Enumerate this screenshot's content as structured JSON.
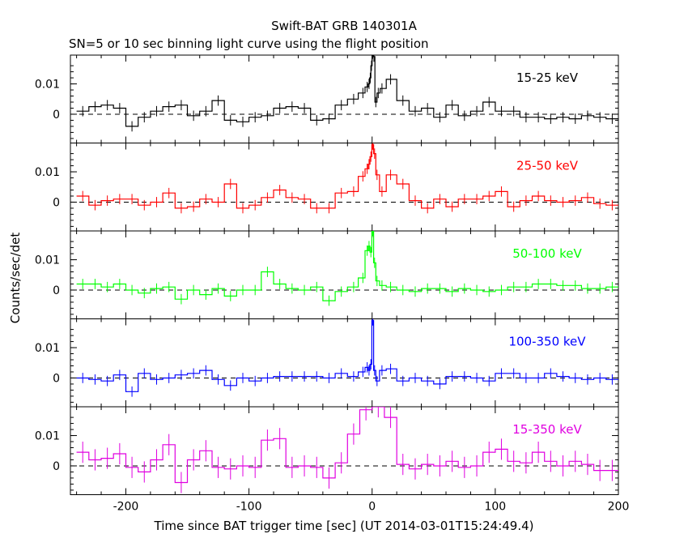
{
  "title": "Swift-BAT GRB 140301A",
  "subtitle": "SN=5 or 10 sec binning light curve using the flight position",
  "xlabel": "Time since BAT trigger time [sec] (UT 2014-03-01T15:24:49.4)",
  "ylabel": "Counts/sec/det",
  "chart_data": {
    "type": "line",
    "title": "Swift-BAT GRB 140301A",
    "subtitle": "SN=5 or 10 sec binning light curve using the flight position",
    "xlabel": "Time since BAT trigger time [sec] (UT 2014-03-01T15:24:49.4)",
    "ylabel": "Counts/sec/det",
    "xlim": [
      -245,
      200
    ],
    "ylim": [
      -0.0095,
      0.0195
    ],
    "x_ticks": [
      -200,
      -100,
      0,
      100,
      200
    ],
    "y_ticks": [
      0,
      0.01
    ],
    "y_tick_labels": [
      "0",
      "0.01"
    ],
    "zero_line": "dashed",
    "series": [
      {
        "name": "15-25 keV",
        "color": "#000000",
        "err": 0.0017,
        "x": [
          -235,
          -225,
          -215,
          -205,
          -195,
          -185,
          -175,
          -165,
          -155,
          -145,
          -135,
          -125,
          -115,
          -105,
          -95,
          -85,
          -75,
          -65,
          -55,
          -45,
          -35,
          -25,
          -15,
          -7.5,
          -4,
          -2.5,
          -1.5,
          -0.5,
          0.5,
          1.5,
          3,
          5,
          8,
          15,
          25,
          35,
          45,
          55,
          65,
          75,
          85,
          95,
          105,
          115,
          125,
          135,
          145,
          155,
          165,
          175,
          185,
          195
        ],
        "y": [
          0.001,
          0.0025,
          0.003,
          0.002,
          -0.004,
          -0.001,
          0.001,
          0.0025,
          0.003,
          -0.0005,
          0.001,
          0.0045,
          -0.002,
          -0.0025,
          -0.001,
          -0.0005,
          0.002,
          0.0025,
          0.002,
          -0.002,
          -0.0015,
          0.003,
          0.005,
          0.007,
          0.009,
          0.01,
          0.012,
          0.016,
          0.02,
          0.019,
          0.004,
          0.007,
          0.0085,
          0.0115,
          0.0045,
          0.001,
          0.002,
          -0.001,
          0.003,
          -0.0005,
          0.001,
          0.004,
          0.001,
          0.001,
          -0.001,
          -0.001,
          -0.0015,
          -0.001,
          -0.0015,
          -0.0005,
          -0.001,
          -0.0015
        ]
      },
      {
        "name": "25-50 keV",
        "color": "#ff0000",
        "err": 0.0017,
        "x": [
          -235,
          -225,
          -215,
          -205,
          -195,
          -185,
          -175,
          -165,
          -155,
          -145,
          -135,
          -125,
          -115,
          -105,
          -95,
          -85,
          -75,
          -65,
          -55,
          -45,
          -35,
          -25,
          -15,
          -7.5,
          -4,
          -2.5,
          -1,
          0.5,
          2,
          4,
          8,
          15,
          25,
          35,
          45,
          55,
          65,
          75,
          85,
          95,
          105,
          115,
          125,
          135,
          145,
          155,
          165,
          175,
          185,
          195
        ],
        "y": [
          0.002,
          -0.001,
          0.0005,
          0.001,
          0.001,
          -0.001,
          0,
          0.003,
          -0.002,
          -0.0015,
          0.001,
          0,
          0.006,
          -0.002,
          -0.001,
          0.0015,
          0.004,
          0.0015,
          0.001,
          -0.002,
          -0.002,
          0.003,
          0.0035,
          0.0085,
          0.011,
          0.0125,
          0.015,
          0.019,
          0.016,
          0.009,
          0.0035,
          0.009,
          0.006,
          0.0005,
          -0.002,
          0.001,
          -0.0015,
          0.001,
          0.001,
          0.002,
          0.0035,
          -0.0015,
          0.0005,
          0.002,
          0.0005,
          0,
          0.0005,
          0.0015,
          -0.0005,
          -0.001
        ]
      },
      {
        "name": "50-100 keV",
        "color": "#00ff00",
        "err": 0.0017,
        "x": [
          -235,
          -225,
          -215,
          -205,
          -195,
          -185,
          -175,
          -165,
          -155,
          -145,
          -135,
          -125,
          -115,
          -105,
          -95,
          -85,
          -75,
          -65,
          -55,
          -45,
          -35,
          -25,
          -15,
          -7.5,
          -4,
          -2.5,
          -1,
          0.5,
          2,
          4,
          8,
          15,
          25,
          35,
          45,
          55,
          65,
          75,
          85,
          95,
          105,
          115,
          125,
          135,
          145,
          155,
          165,
          175,
          185,
          195
        ],
        "y": [
          0.002,
          0.002,
          0.001,
          0.002,
          0,
          -0.001,
          0.0005,
          0.001,
          -0.003,
          0,
          -0.0015,
          0.0005,
          -0.002,
          0,
          0,
          0.006,
          0.002,
          0.0005,
          0,
          0.001,
          -0.0035,
          -0.0005,
          0.001,
          0.004,
          0.013,
          0.0145,
          0.0125,
          0.0195,
          0.009,
          0.003,
          0.0015,
          0.001,
          0,
          -0.0005,
          0.0005,
          0.0005,
          -0.0005,
          0.0005,
          0,
          -0.0005,
          0,
          0.001,
          0.001,
          0.002,
          0.002,
          0.0015,
          0.0015,
          0.0005,
          0.0005,
          0.001
        ]
      },
      {
        "name": "100-350 keV",
        "color": "#0000ff",
        "err": 0.0017,
        "x": [
          -235,
          -225,
          -215,
          -205,
          -195,
          -185,
          -175,
          -165,
          -155,
          -145,
          -135,
          -125,
          -115,
          -105,
          -95,
          -85,
          -75,
          -65,
          -55,
          -45,
          -35,
          -25,
          -15,
          -7.5,
          -4,
          -2.5,
          -1,
          0.5,
          2,
          4,
          8,
          15,
          25,
          35,
          45,
          55,
          65,
          75,
          85,
          95,
          105,
          115,
          125,
          135,
          145,
          155,
          165,
          175,
          185,
          195
        ],
        "y": [
          0,
          -0.0005,
          -0.001,
          0.001,
          -0.0045,
          0.0015,
          -0.0005,
          0,
          0.001,
          0.0015,
          0.0025,
          -0.0005,
          -0.0025,
          0,
          -0.001,
          0,
          0.0005,
          0.0005,
          0.0005,
          0.0005,
          0,
          0.0015,
          0.0005,
          0.002,
          0.0035,
          0.0025,
          0.0045,
          0.019,
          0.0025,
          -0.001,
          0.0025,
          0.003,
          -0.001,
          0,
          -0.001,
          -0.002,
          0.0005,
          0.0005,
          0,
          -0.001,
          0.0015,
          0.0015,
          0,
          0,
          0.0015,
          0.0005,
          0,
          -0.0005,
          0,
          -0.0005
        ]
      },
      {
        "name": "15-350 keV",
        "color": "#e000e0",
        "err": 0.0035,
        "x": [
          -235,
          -225,
          -215,
          -205,
          -195,
          -185,
          -175,
          -165,
          -155,
          -145,
          -135,
          -125,
          -115,
          -105,
          -95,
          -85,
          -75,
          -65,
          -55,
          -45,
          -35,
          -25,
          -15,
          -5,
          5,
          15,
          25,
          35,
          45,
          55,
          65,
          75,
          85,
          95,
          105,
          115,
          125,
          135,
          145,
          155,
          165,
          175,
          185,
          195
        ],
        "y": [
          0.0045,
          0.002,
          0.0025,
          0.004,
          -0.0005,
          -0.002,
          0.002,
          0.007,
          -0.0055,
          0.002,
          0.005,
          -0.0005,
          -0.001,
          0,
          -0.0005,
          0.0085,
          0.009,
          -0.0005,
          0,
          -0.0005,
          -0.004,
          0.001,
          0.0105,
          0.0185,
          0.0195,
          0.016,
          0.0005,
          -0.001,
          0.0005,
          0,
          0.0015,
          -0.0005,
          0,
          0.0045,
          0.0055,
          0.0015,
          0.001,
          0.0045,
          0.0015,
          0,
          0.0015,
          0.0005,
          -0.0015,
          -0.0015
        ]
      }
    ]
  }
}
